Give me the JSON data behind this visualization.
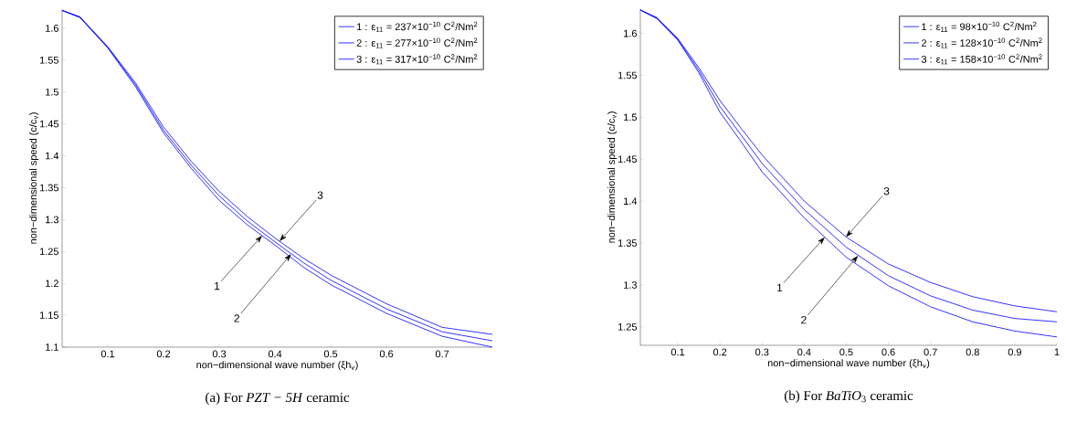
{
  "chart_data": [
    {
      "type": "line",
      "title": "(a) For *PZT − 5H* ceramic",
      "xlabel": "non−dimensional wave number (ξh$_{v}$)",
      "ylabel": "non−dimensional speed (c/c$_{v}$)",
      "legend": "top right",
      "line_style": "solid",
      "xlim": [
        0.018,
        0.79
      ],
      "ylim": [
        1.1,
        1.63
      ],
      "xticks": [
        0.1,
        0.2,
        0.3,
        0.4,
        0.5,
        0.6,
        0.7
      ],
      "yticks": [
        1.1,
        1.15,
        1.2,
        1.25,
        1.3,
        1.35,
        1.4,
        1.45,
        1.5,
        1.55,
        1.6
      ],
      "x": [
        0.018,
        0.05,
        0.1,
        0.15,
        0.2,
        0.25,
        0.3,
        0.35,
        0.4,
        0.45,
        0.5,
        0.6,
        0.7,
        0.79
      ],
      "series": [
        {
          "name": "1 : ε$_{11}$ = 237×10$^{−10}$ C$^{2}$/Nm$^{2}$",
          "color": "#0000ff",
          "values": [
            1.628,
            1.617,
            1.569,
            1.508,
            1.436,
            1.38,
            1.33,
            1.292,
            1.26,
            1.226,
            1.198,
            1.153,
            1.117,
            1.1
          ]
        },
        {
          "name": "2 : ε$_{11}$ = 277×10$^{−10}$ C$^{2}$/Nm$^{2}$",
          "color": "#0000ff",
          "values": [
            1.628,
            1.617,
            1.57,
            1.511,
            1.44,
            1.385,
            1.337,
            1.298,
            1.265,
            1.233,
            1.205,
            1.16,
            1.124,
            1.11
          ]
        },
        {
          "name": "3 : ε$_{11}$ = 317×10$^{−10}$ C$^{2}$/Nm$^{2}$",
          "color": "#0000ff",
          "values": [
            1.628,
            1.618,
            1.571,
            1.514,
            1.445,
            1.391,
            1.344,
            1.305,
            1.271,
            1.24,
            1.213,
            1.168,
            1.131,
            1.12
          ]
        }
      ],
      "annotations": [
        {
          "text": "1",
          "x": 0.377,
          "y": 1.275
        },
        {
          "text": "2",
          "x": 0.429,
          "y": 1.246
        },
        {
          "text": "3",
          "x": 0.408,
          "y": 1.266
        }
      ]
    },
    {
      "type": "line",
      "title": "(b) For *BaTiO*$_{3}$ ceramic",
      "xlabel": "non−dimensional wave number (ξh$_{v}$)",
      "ylabel": "non−dimensional speed (c/c$_{v}$)",
      "legend": "top right",
      "line_style": "solid",
      "xlim": [
        0.011,
        1.0
      ],
      "ylim": [
        1.228,
        1.629
      ],
      "xticks": [
        0.1,
        0.2,
        0.3,
        0.4,
        0.5,
        0.6,
        0.7,
        0.8,
        0.9,
        1
      ],
      "yticks": [
        1.25,
        1.3,
        1.35,
        1.4,
        1.45,
        1.5,
        1.55,
        1.6
      ],
      "x": [
        0.011,
        0.05,
        0.1,
        0.15,
        0.2,
        0.25,
        0.3,
        0.4,
        0.5,
        0.6,
        0.7,
        0.8,
        0.9,
        1.0
      ],
      "series": [
        {
          "name": "1 : ε$_{11}$ = 98×10$^{−10}$ C$^{2}$/Nm$^{2}$",
          "color": "#0000ff",
          "values": [
            1.628,
            1.618,
            1.592,
            1.553,
            1.506,
            1.471,
            1.435,
            1.38,
            1.333,
            1.299,
            1.274,
            1.256,
            1.245,
            1.238
          ]
        },
        {
          "name": "2 : ε$_{11}$ = 128×10$^{−10}$ C$^{2}$/Nm$^{2}$",
          "color": "#0000ff",
          "values": [
            1.628,
            1.618,
            1.593,
            1.556,
            1.513,
            1.479,
            1.445,
            1.39,
            1.345,
            1.311,
            1.287,
            1.27,
            1.26,
            1.256
          ]
        },
        {
          "name": "3 : ε$_{11}$ = 158×10$^{−10}$ C$^{2}$/Nm$^{2}$",
          "color": "#0000ff",
          "values": [
            1.628,
            1.619,
            1.594,
            1.559,
            1.52,
            1.487,
            1.455,
            1.4,
            1.357,
            1.325,
            1.303,
            1.286,
            1.275,
            1.268
          ]
        }
      ],
      "annotations": [
        {
          "text": "1",
          "x": 0.449,
          "y": 1.357
        },
        {
          "text": "2",
          "x": 0.528,
          "y": 1.335
        },
        {
          "text": "3",
          "x": 0.499,
          "y": 1.357
        }
      ]
    }
  ]
}
